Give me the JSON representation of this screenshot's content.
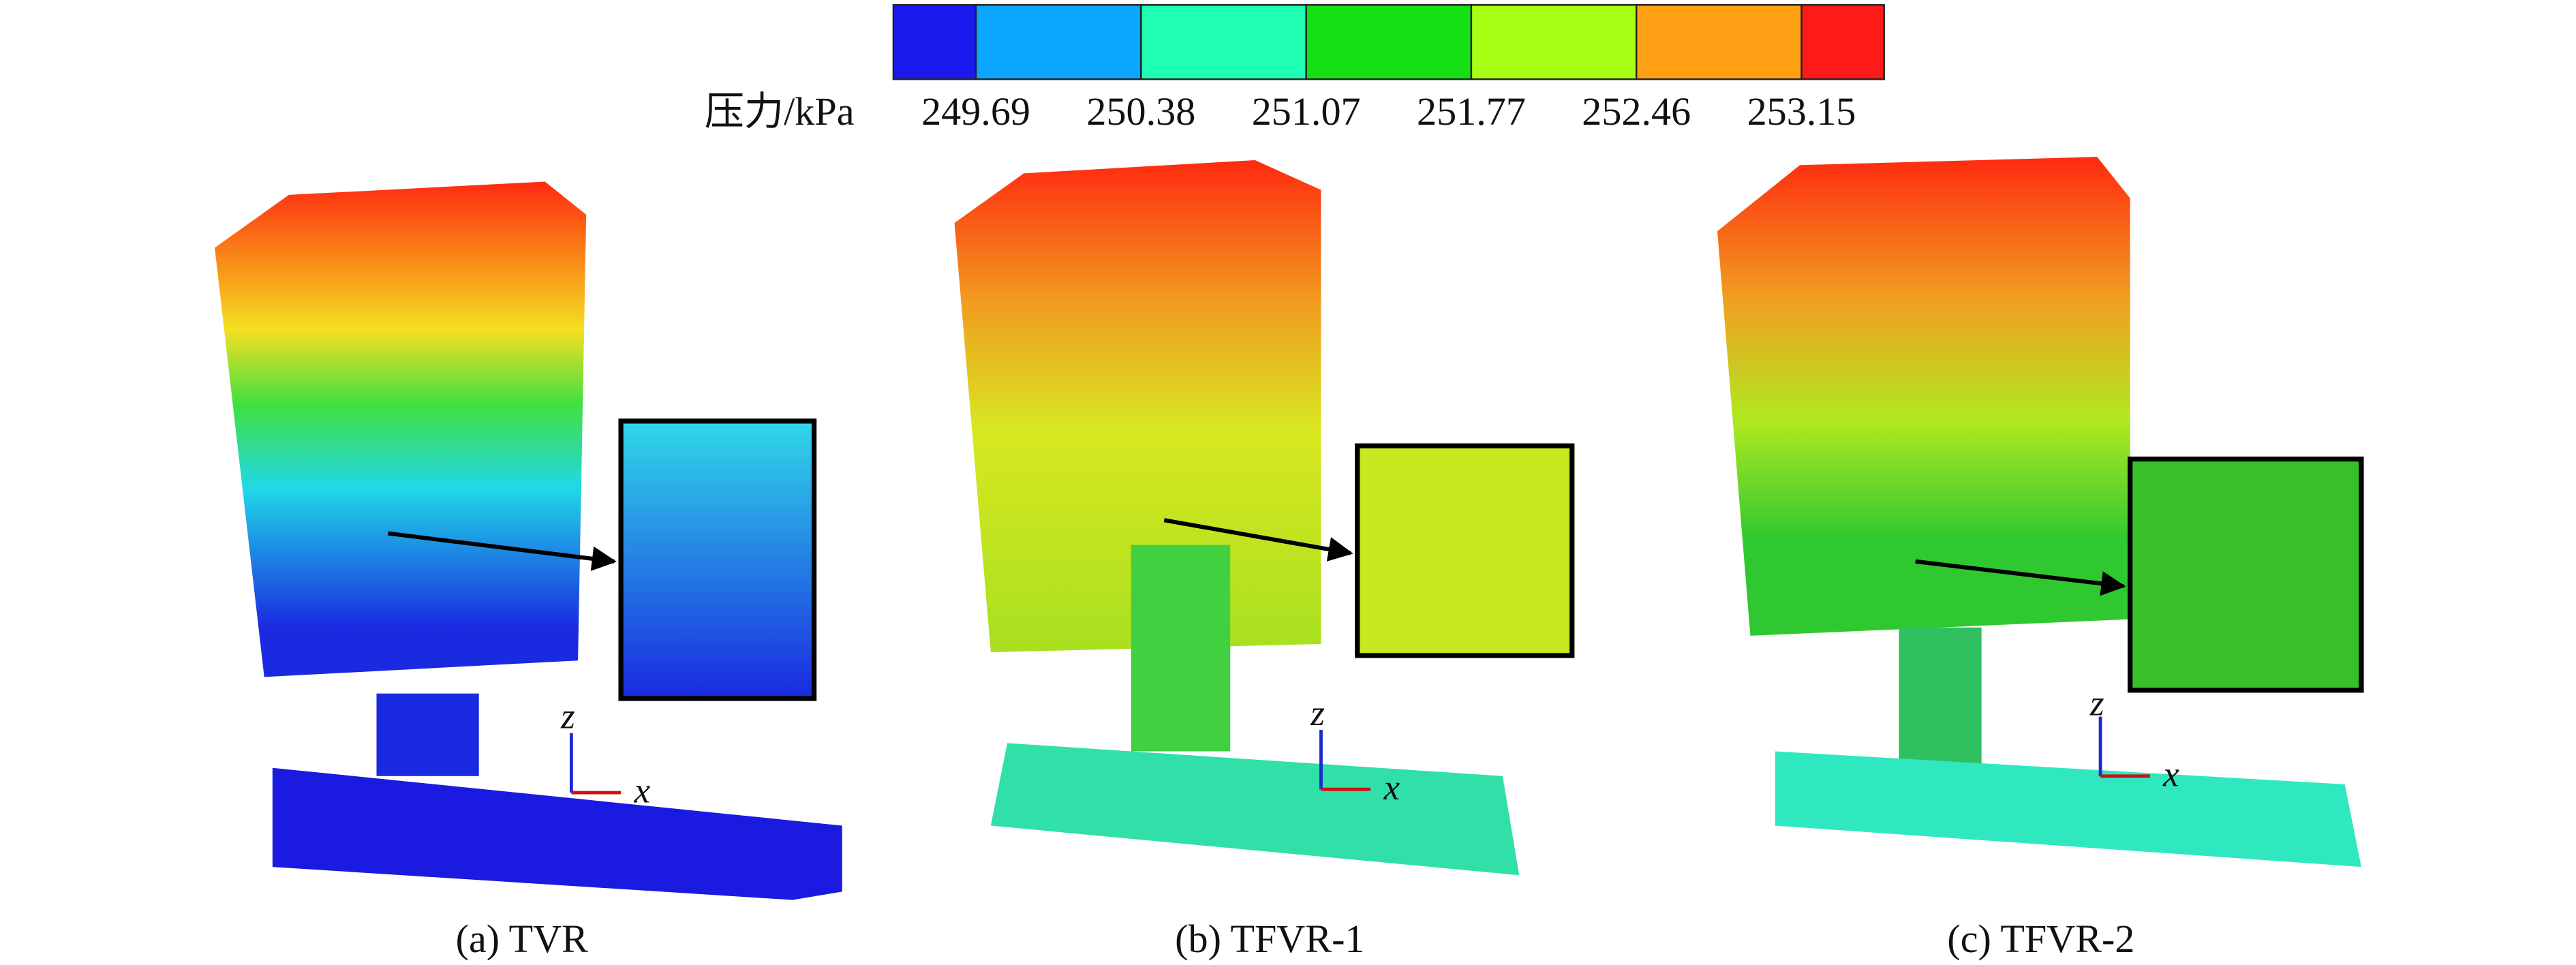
{
  "colorbar": {
    "label": "压力/kPa",
    "colors": [
      "#1a1aee",
      "#0aa6ff",
      "#1effb4",
      "#14e014",
      "#a8ff14",
      "#ffa014",
      "#ff1a1a"
    ],
    "ticks": [
      249.69,
      250.38,
      251.07,
      251.77,
      252.46,
      253.15
    ]
  },
  "panels": [
    {
      "caption": "(a) TVR",
      "axis_labels": [
        "z",
        "x"
      ]
    },
    {
      "caption": "(b) TFVR-1",
      "axis_labels": [
        "z",
        "x"
      ]
    },
    {
      "caption": "(c) TFVR-2",
      "axis_labels": [
        "z",
        "x"
      ]
    }
  ]
}
